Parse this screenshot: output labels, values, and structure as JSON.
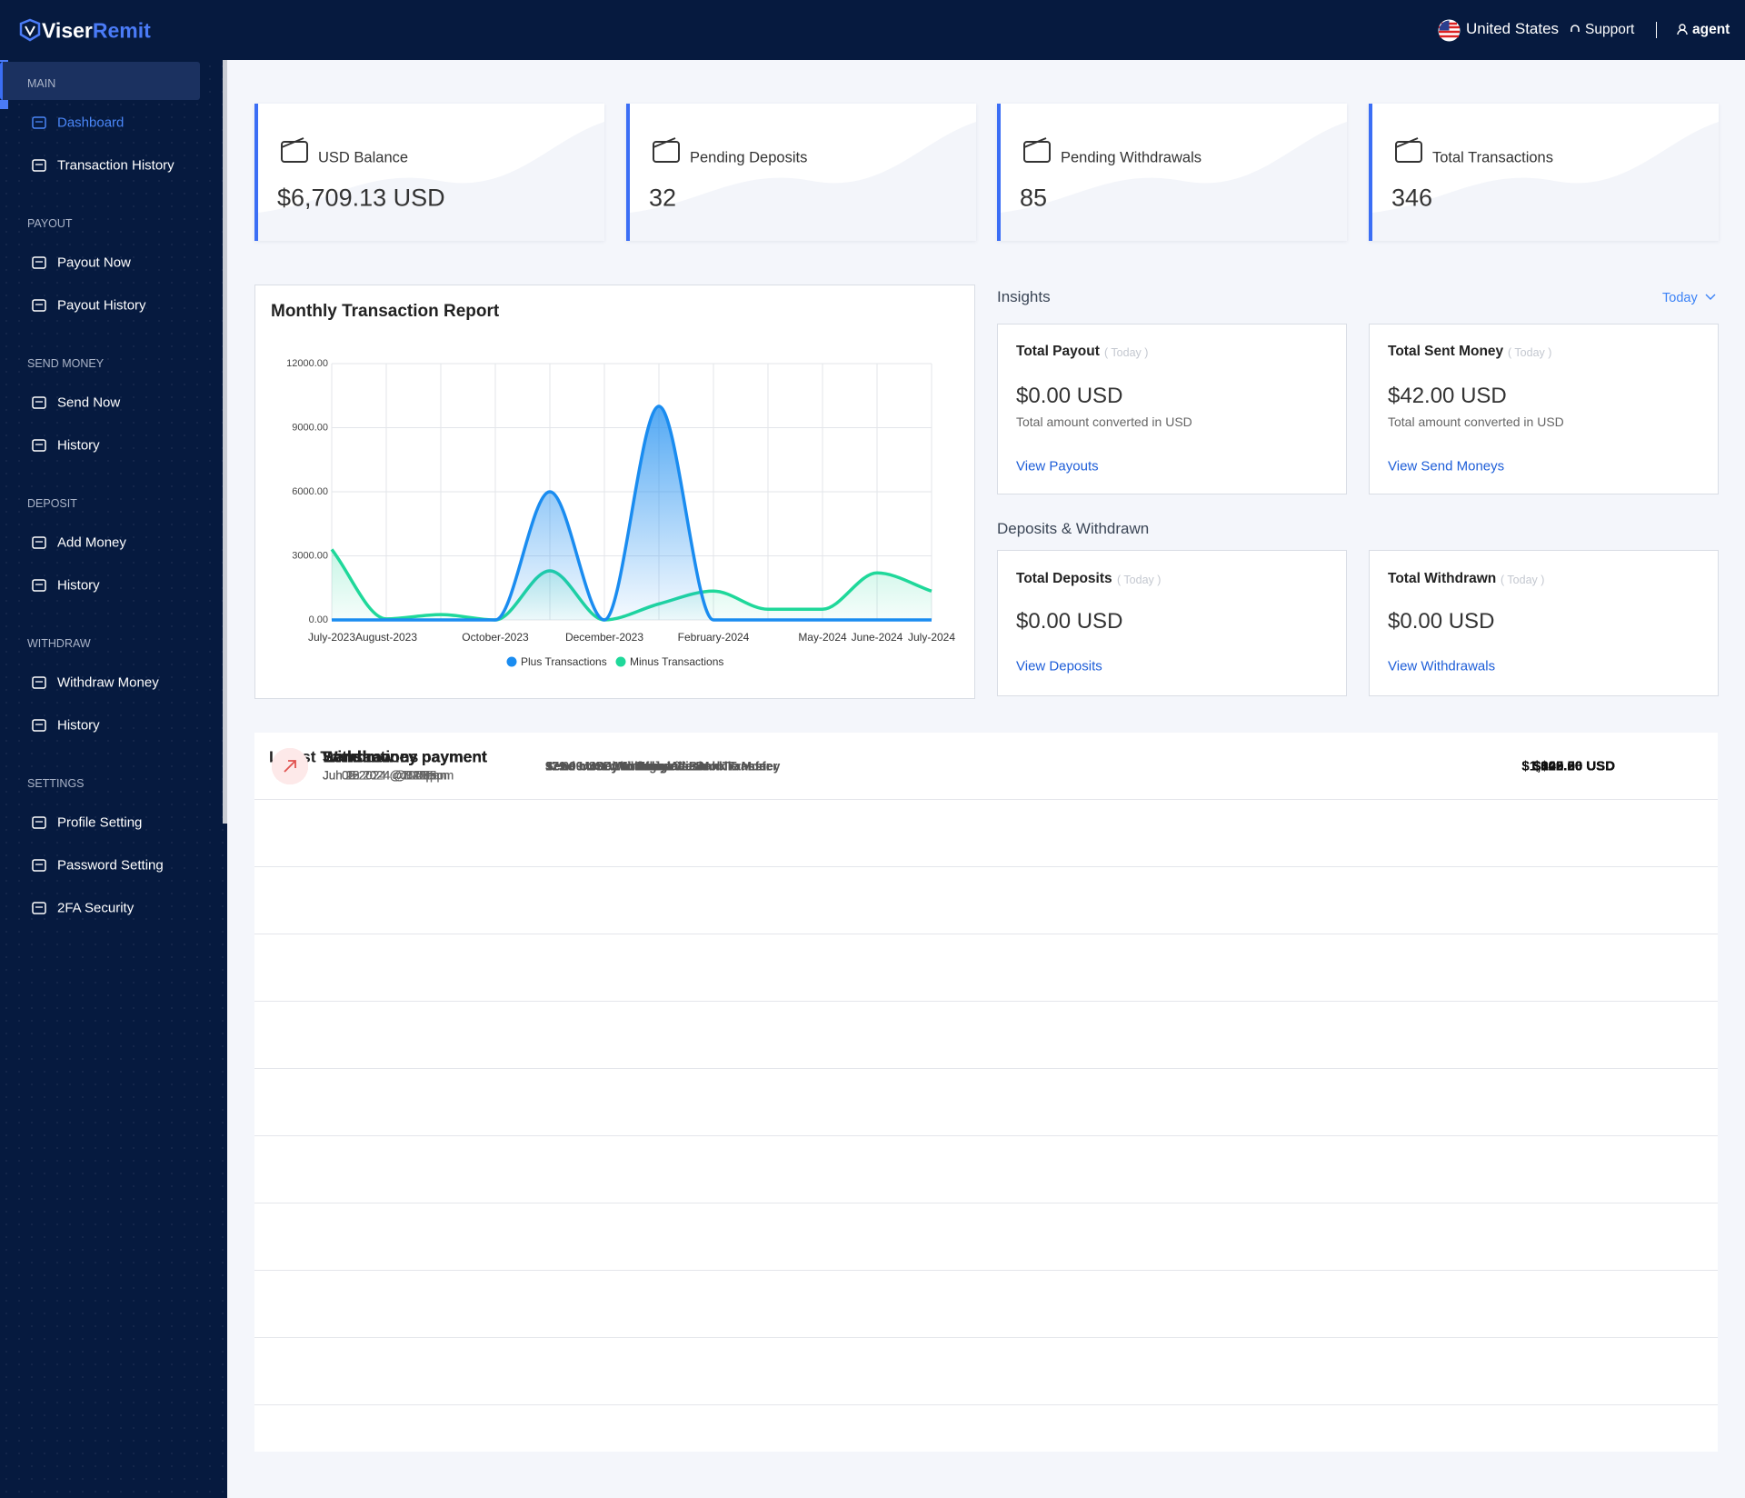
{
  "header": {
    "logo_a": "Viser",
    "logo_b": "Remit",
    "country": "United States",
    "support": "Support",
    "user": "agent"
  },
  "sidebar": {
    "sections": [
      {
        "title": "MAIN",
        "items": [
          "Dashboard",
          "Transaction History"
        ]
      },
      {
        "title": "PAYOUT",
        "items": [
          "Payout Now",
          "Payout History"
        ]
      },
      {
        "title": "SEND MONEY",
        "items": [
          "Send Now",
          "History"
        ]
      },
      {
        "title": "DEPOSIT",
        "items": [
          "Add Money",
          "History"
        ]
      },
      {
        "title": "WITHDRAW",
        "items": [
          "Withdraw Money",
          "History"
        ]
      },
      {
        "title": "SETTINGS",
        "items": [
          "Profile Setting",
          "Password Setting",
          "2FA Security"
        ]
      }
    ]
  },
  "stats": [
    {
      "label": "USD Balance",
      "value": "$6,709.13 USD"
    },
    {
      "label": "Pending Deposits",
      "value": "32"
    },
    {
      "label": "Pending Withdrawals",
      "value": "85"
    },
    {
      "label": "Total Transactions",
      "value": "346"
    }
  ],
  "chart_data": {
    "type": "line",
    "title": "Monthly Transaction Report",
    "categories": [
      "July-2023",
      "August-2023",
      null,
      "October-2023",
      null,
      "December-2023",
      null,
      "February-2024",
      null,
      "May-2024",
      "June-2024",
      "July-2024"
    ],
    "series": [
      {
        "name": "Plus Transactions",
        "color": "#1a8cf0",
        "values": [
          0,
          0,
          0,
          0,
          6000,
          0,
          10000,
          0,
          0,
          0,
          0,
          0
        ]
      },
      {
        "name": "Minus Transactions",
        "color": "#1fd89a",
        "values": [
          3300,
          50,
          250,
          0,
          2300,
          0,
          750,
          1350,
          500,
          500,
          2200,
          1350
        ]
      }
    ],
    "ylim": [
      0,
      12000
    ],
    "yticks": [
      {
        "value": 0,
        "label": "0.00"
      },
      {
        "value": 3000,
        "label": "3000.00"
      },
      {
        "value": 6000,
        "label": "6000.00"
      },
      {
        "value": 9000,
        "label": "9000.00"
      },
      {
        "value": 12000,
        "label": "12000.00"
      }
    ],
    "grid": true,
    "legend": "bottom"
  },
  "insights": {
    "title": "Insights",
    "filter": "Today",
    "cards": [
      {
        "title": "Total Payout",
        "tag": "( Today )",
        "amount": "$0.00 USD",
        "note": "Total amount converted in USD",
        "link": "View Payouts"
      },
      {
        "title": "Total Sent Money",
        "tag": "( Today )",
        "amount": "$42.00 USD",
        "note": "Total amount converted in USD",
        "link": "View Send Moneys"
      }
    ]
  },
  "deposits": {
    "title": "Deposits & Withdrawn",
    "cards": [
      {
        "title": "Total Deposits",
        "tag": "( Today )",
        "amount": "$0.00 USD",
        "link": "View Deposits"
      },
      {
        "title": "Total Withdrawn",
        "tag": "( Today )",
        "amount": "$0.00 USD",
        "link": "View Withdrawals"
      }
    ]
  },
  "transactions": {
    "title": "Latest Transactions",
    "rows": [
      {
        "title": "Send money payment",
        "date": "Jul 09 2024 @10:26am",
        "detail": "Send money to Bangladesh",
        "amount": "$43.26 USD"
      },
      {
        "title": "Send money payment",
        "date": "Jul 06 2024 @1:34am",
        "detail": "Send money to India",
        "amount": "$105.00 USD"
      },
      {
        "title": "Send money payment",
        "date": "Jul 05 2024 @1:46pm",
        "detail": "Send money to France",
        "amount": "$100.50 USD"
      },
      {
        "title": "Withdraw",
        "date": "Jul 02 2024 @7:42pm",
        "detail": "979.00 USD Withdraw Via Bank Transfer",
        "amount": "$1,000.00 USD"
      },
      {
        "title": "Send money payment",
        "date": "Jul 02 2024 @7:20pm",
        "detail": "Send money to Bangladesh",
        "amount": "$103.00 USD"
      },
      {
        "title": "Send money payment",
        "date": "Jun 28 2024 @6:59pm",
        "detail": "Send money to Kenya",
        "amount": "$1,005.00 USD"
      },
      {
        "title": "Withdraw",
        "date": "Jun 20 2024 @7:08am",
        "detail": "121.99 USDl Withdraw Via Mobile Money",
        "amount": "$122.00 USD"
      },
      {
        "title": "Send money payment",
        "date": "Jun 18 2024 @9:20pm",
        "detail": "Send money to Afghanistan",
        "amount": "$100.50 USD"
      },
      {
        "title": "Withdraw",
        "date": "Jun 16 2024 @12:48pm",
        "detail": "97.00 USD Withdraw Via Bank Transfer",
        "amount": "$100.00 USD"
      },
      {
        "title": "Send money payment",
        "date": "Jun 12 2024 @12:55pm",
        "detail": "Send money to Bangladesh",
        "amount": "$100.50 USD"
      }
    ]
  }
}
